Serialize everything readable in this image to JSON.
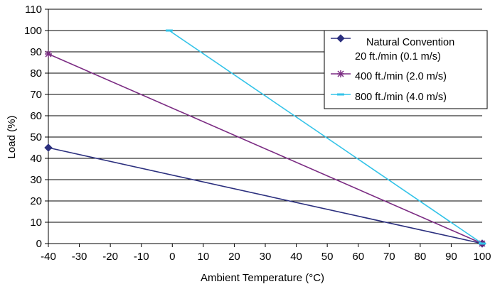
{
  "chart_data": {
    "type": "line",
    "xlabel": "Ambient Temperature (°C)",
    "ylabel": "Load (%)",
    "xlim": [
      -40,
      100
    ],
    "ylim": [
      0,
      110
    ],
    "xticks": [
      "-40",
      "-30",
      "-20",
      "-10",
      "0",
      "10",
      "20",
      "30",
      "40",
      "50",
      "60",
      "70",
      "80",
      "90",
      "100"
    ],
    "yticks": [
      "0",
      "10",
      "20",
      "30",
      "40",
      "50",
      "60",
      "70",
      "80",
      "90",
      "100",
      "110"
    ],
    "grid": "horizontal",
    "legend_position": "top-right",
    "series": [
      {
        "name": "Natural Convention",
        "name_line2": "20 ft./min (0.1 m/s)",
        "color": "#2B2F7E",
        "marker": "diamond",
        "x": [
          -40,
          100
        ],
        "y": [
          45,
          0
        ]
      },
      {
        "name": "400 ft./min (2.0 m/s)",
        "color": "#7B2C83",
        "marker": "star",
        "x": [
          -40,
          100
        ],
        "y": [
          89,
          0
        ]
      },
      {
        "name": "800 ft./min (4.0 m/s)",
        "color": "#33C3E8",
        "marker": "dash",
        "x": [
          -1,
          100
        ],
        "y": [
          100,
          0
        ]
      }
    ]
  }
}
